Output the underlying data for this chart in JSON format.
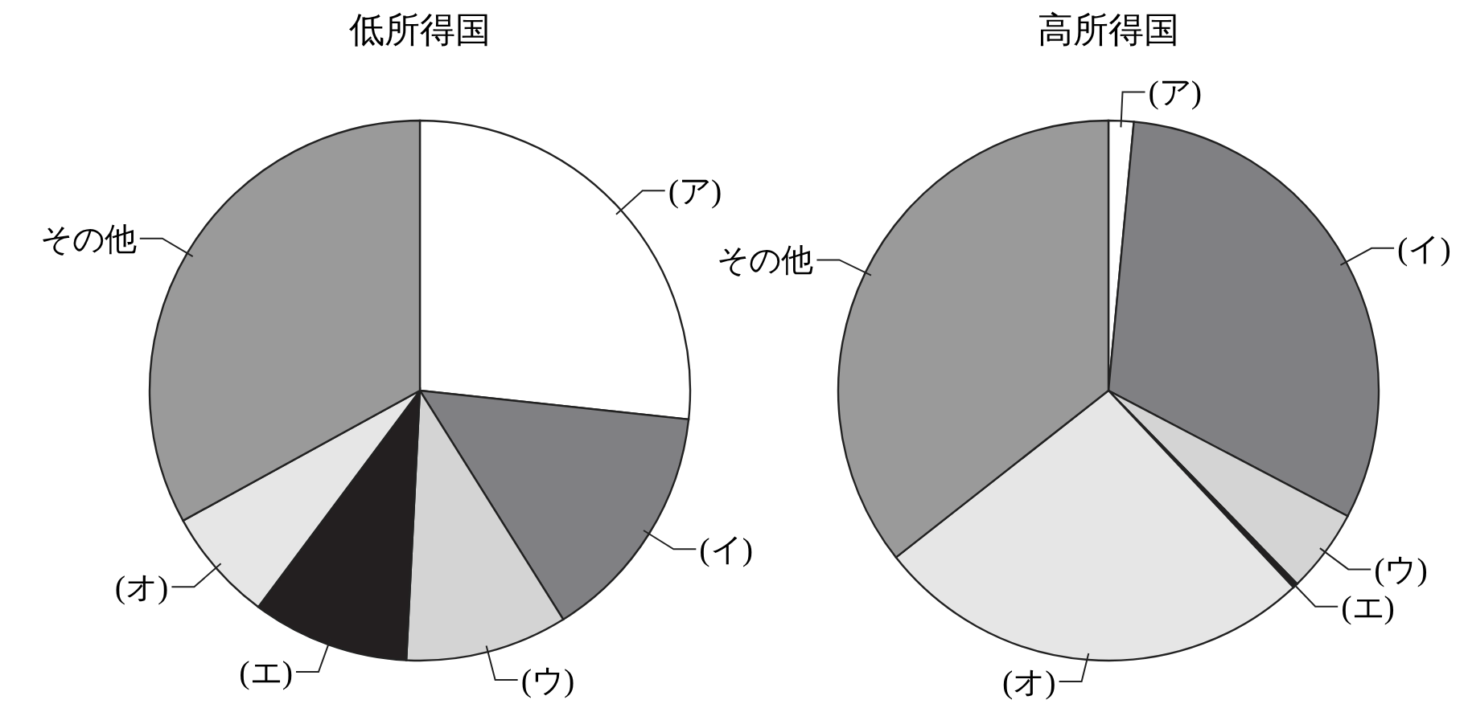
{
  "chart_data": [
    {
      "type": "pie",
      "title": "低所得国",
      "categories": [
        "(ア)",
        "(イ)",
        "(ウ)",
        "(エ)",
        "(オ)",
        "その他"
      ],
      "values": [
        26.7,
        14.4,
        9.7,
        9.4,
        6.8,
        33.0
      ],
      "colors": [
        "#ffffff",
        "#808083",
        "#d4d4d4",
        "#231f20",
        "#e6e6e6",
        "#9a9a9a"
      ]
    },
    {
      "type": "pie",
      "title": "高所得国",
      "categories": [
        "(ア)",
        "(イ)",
        "(ウ)",
        "(エ)",
        "(オ)",
        "その他"
      ],
      "values": [
        1.5,
        31.2,
        5.0,
        0.3,
        26.4,
        35.6
      ],
      "colors": [
        "#ffffff",
        "#808083",
        "#d4d4d4",
        "#231f20",
        "#e6e6e6",
        "#9a9a9a"
      ]
    }
  ]
}
